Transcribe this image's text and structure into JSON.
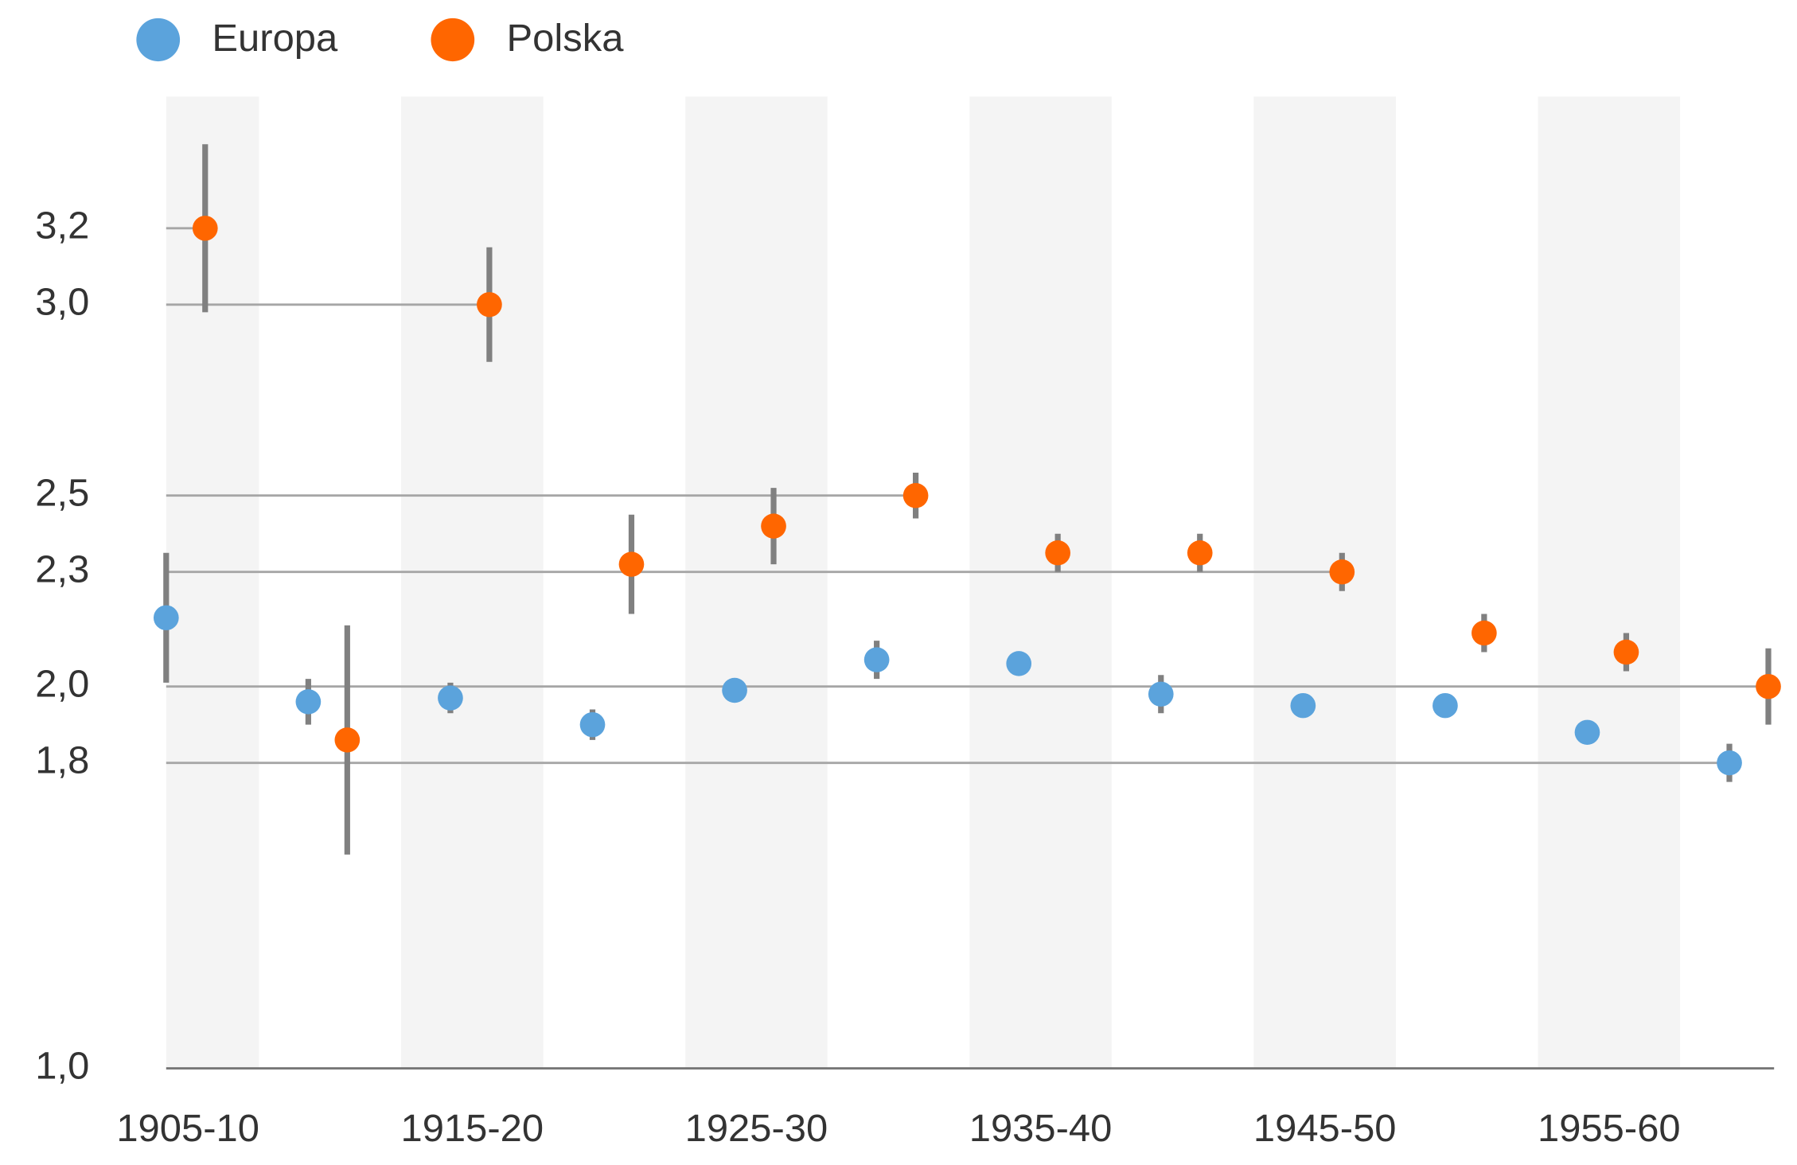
{
  "chart_data": {
    "type": "dot-error",
    "categories": [
      "1905-10",
      null,
      "1915-20",
      null,
      "1925-30",
      null,
      "1935-40",
      null,
      "1945-50",
      null,
      "1955-60",
      null
    ],
    "series": [
      {
        "name": "Europa",
        "color": "#5ba3dc",
        "values": [
          2.18,
          1.96,
          1.97,
          1.9,
          1.99,
          2.07,
          2.06,
          1.98,
          1.95,
          1.95,
          1.88,
          1.8
        ],
        "errors": [
          0.17,
          0.06,
          0.04,
          0.04,
          0,
          0.05,
          0,
          0.05,
          0,
          0,
          0,
          0.05
        ]
      },
      {
        "name": "Polska",
        "color": "#ff6600",
        "values": [
          3.2,
          1.86,
          3.0,
          2.32,
          2.42,
          2.5,
          2.35,
          2.35,
          2.3,
          2.14,
          2.09,
          2.0
        ],
        "errors": [
          0.22,
          0.3,
          0.15,
          0.13,
          0.1,
          0.06,
          0.05,
          0.05,
          0.05,
          0.05,
          0.05,
          0.1
        ]
      }
    ],
    "ylim": [
      1.0,
      3.5
    ],
    "yticks": [
      {
        "value": 1.0,
        "label": "1,0"
      },
      {
        "value": 1.8,
        "label": "1,8"
      },
      {
        "value": 2.0,
        "label": "2,0"
      },
      {
        "value": 2.3,
        "label": "2,3"
      },
      {
        "value": 2.5,
        "label": "2,5"
      },
      {
        "value": 3.0,
        "label": "3,0"
      },
      {
        "value": 3.2,
        "label": "3,2"
      }
    ],
    "legend": "top-left"
  }
}
